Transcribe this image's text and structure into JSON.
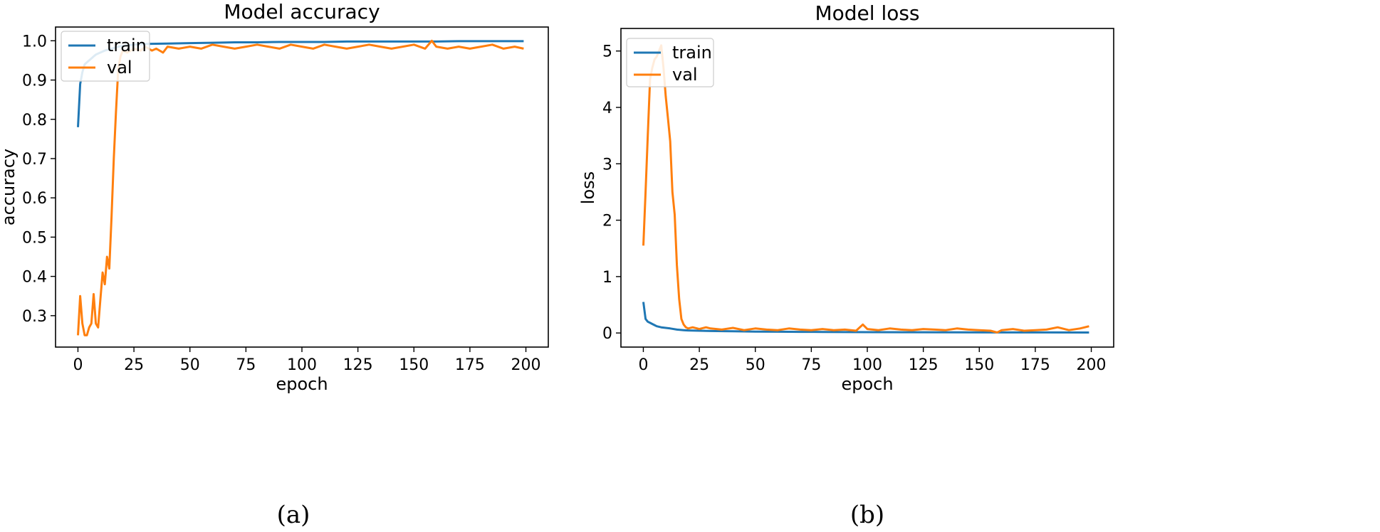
{
  "chart_data": [
    {
      "type": "line",
      "title": "Model accuracy",
      "xlabel": "epoch",
      "ylabel": "accuracy",
      "caption": "(a)",
      "xlim": [
        -10,
        210
      ],
      "ylim": [
        0.22,
        1.035
      ],
      "xticks": [
        0,
        25,
        50,
        75,
        100,
        125,
        150,
        175,
        200
      ],
      "yticks": [
        0.3,
        0.4,
        0.5,
        0.6,
        0.7,
        0.8,
        0.9,
        1.0
      ],
      "ytick_labels": [
        "0.3",
        "0.4",
        "0.5",
        "0.6",
        "0.7",
        "0.8",
        "0.9",
        "1.0"
      ],
      "legend": {
        "location": "top-left",
        "entries": [
          "train",
          "val"
        ]
      },
      "series": [
        {
          "name": "train",
          "color": "#1f77b4",
          "x": [
            0,
            1,
            2,
            3,
            4,
            5,
            6,
            7,
            8,
            10,
            12,
            15,
            18,
            20,
            25,
            30,
            40,
            50,
            60,
            70,
            80,
            90,
            100,
            110,
            120,
            130,
            140,
            150,
            160,
            170,
            180,
            190,
            199
          ],
          "y": [
            0.78,
            0.89,
            0.92,
            0.94,
            0.945,
            0.95,
            0.955,
            0.96,
            0.965,
            0.97,
            0.975,
            0.98,
            0.985,
            0.987,
            0.99,
            0.992,
            0.993,
            0.994,
            0.995,
            0.996,
            0.996,
            0.997,
            0.997,
            0.997,
            0.998,
            0.998,
            0.998,
            0.998,
            0.998,
            0.999,
            0.999,
            0.999,
            0.999
          ]
        },
        {
          "name": "val",
          "color": "#ff7f0e",
          "x": [
            0,
            1,
            2,
            3,
            4,
            5,
            6,
            7,
            8,
            9,
            10,
            11,
            12,
            13,
            14,
            15,
            16,
            17,
            18,
            19,
            20,
            22,
            25,
            28,
            30,
            33,
            35,
            38,
            40,
            45,
            50,
            55,
            60,
            65,
            70,
            75,
            80,
            85,
            90,
            95,
            100,
            105,
            110,
            115,
            120,
            125,
            130,
            135,
            140,
            145,
            150,
            155,
            158,
            160,
            165,
            170,
            175,
            180,
            185,
            190,
            195,
            199
          ],
          "y": [
            0.25,
            0.35,
            0.28,
            0.25,
            0.25,
            0.27,
            0.28,
            0.355,
            0.28,
            0.27,
            0.34,
            0.41,
            0.38,
            0.45,
            0.42,
            0.55,
            0.7,
            0.82,
            0.93,
            0.96,
            0.975,
            0.97,
            0.98,
            0.975,
            0.985,
            0.975,
            0.98,
            0.97,
            0.985,
            0.98,
            0.985,
            0.98,
            0.99,
            0.985,
            0.98,
            0.985,
            0.99,
            0.985,
            0.98,
            0.99,
            0.985,
            0.98,
            0.99,
            0.985,
            0.98,
            0.985,
            0.99,
            0.985,
            0.98,
            0.985,
            0.99,
            0.98,
            1.0,
            0.985,
            0.98,
            0.985,
            0.98,
            0.985,
            0.99,
            0.98,
            0.985,
            0.98
          ]
        }
      ]
    },
    {
      "type": "line",
      "title": "Model loss",
      "xlabel": "epoch",
      "ylabel": "loss",
      "caption": "(b)",
      "xlim": [
        -10,
        210
      ],
      "ylim": [
        -0.25,
        5.4
      ],
      "xticks": [
        0,
        25,
        50,
        75,
        100,
        125,
        150,
        175,
        200
      ],
      "yticks": [
        0,
        1,
        2,
        3,
        4,
        5
      ],
      "ytick_labels": [
        "0",
        "1",
        "2",
        "3",
        "4",
        "5"
      ],
      "legend": {
        "location": "top-left",
        "entries": [
          "train",
          "val"
        ]
      },
      "series": [
        {
          "name": "train",
          "color": "#1f77b4",
          "x": [
            0,
            1,
            2,
            3,
            4,
            5,
            6,
            8,
            10,
            12,
            15,
            18,
            20,
            25,
            30,
            40,
            50,
            60,
            70,
            80,
            90,
            100,
            120,
            140,
            160,
            180,
            199
          ],
          "y": [
            0.55,
            0.25,
            0.2,
            0.18,
            0.16,
            0.14,
            0.12,
            0.1,
            0.09,
            0.08,
            0.06,
            0.05,
            0.045,
            0.04,
            0.035,
            0.03,
            0.025,
            0.022,
            0.02,
            0.018,
            0.016,
            0.015,
            0.013,
            0.012,
            0.01,
            0.01,
            0.009
          ]
        },
        {
          "name": "val",
          "color": "#ff7f0e",
          "x": [
            0,
            1,
            2,
            3,
            4,
            5,
            6,
            7,
            8,
            9,
            10,
            11,
            12,
            13,
            14,
            15,
            16,
            17,
            18,
            19,
            20,
            22,
            25,
            28,
            30,
            35,
            40,
            45,
            50,
            55,
            60,
            65,
            70,
            75,
            80,
            85,
            90,
            95,
            98,
            100,
            105,
            110,
            115,
            120,
            125,
            130,
            135,
            140,
            145,
            150,
            155,
            158,
            160,
            165,
            170,
            175,
            180,
            185,
            190,
            195,
            199
          ],
          "y": [
            1.55,
            2.5,
            3.5,
            4.5,
            4.7,
            4.85,
            4.9,
            5.0,
            5.1,
            4.7,
            4.2,
            3.8,
            3.4,
            2.5,
            2.1,
            1.2,
            0.6,
            0.25,
            0.15,
            0.1,
            0.08,
            0.1,
            0.07,
            0.1,
            0.08,
            0.06,
            0.09,
            0.05,
            0.08,
            0.06,
            0.05,
            0.08,
            0.06,
            0.05,
            0.07,
            0.05,
            0.06,
            0.04,
            0.15,
            0.07,
            0.05,
            0.08,
            0.06,
            0.05,
            0.07,
            0.06,
            0.05,
            0.08,
            0.06,
            0.05,
            0.04,
            0.01,
            0.05,
            0.07,
            0.04,
            0.05,
            0.06,
            0.1,
            0.05,
            0.08,
            0.12
          ]
        }
      ]
    }
  ]
}
